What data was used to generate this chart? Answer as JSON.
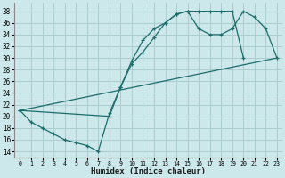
{
  "title": "",
  "xlabel": "Humidex (Indice chaleur)",
  "ylabel": "",
  "bg_color": "#cce8ea",
  "grid_color": "#aacdd0",
  "line_color": "#1e6b6b",
  "xlim": [
    -0.5,
    23.5
  ],
  "ylim": [
    13,
    39.5
  ],
  "xticks": [
    0,
    1,
    2,
    3,
    4,
    5,
    6,
    7,
    8,
    9,
    10,
    11,
    12,
    13,
    14,
    15,
    16,
    17,
    18,
    19,
    20,
    21,
    22,
    23
  ],
  "yticks": [
    14,
    16,
    18,
    20,
    22,
    24,
    26,
    28,
    30,
    32,
    34,
    36,
    38
  ],
  "line1_x": [
    0,
    1,
    2,
    3,
    4,
    5,
    6,
    7,
    8,
    9,
    10,
    11,
    12,
    13,
    14,
    15,
    16,
    17,
    18,
    19,
    20
  ],
  "line1_y": [
    21,
    19,
    18,
    17,
    16,
    15.5,
    15,
    14,
    20.5,
    25,
    29.5,
    33,
    35,
    36,
    37.5,
    38,
    38,
    38,
    38,
    38,
    30
  ],
  "line2_x": [
    0,
    8,
    9,
    10,
    11,
    12,
    13,
    14,
    15,
    16,
    17,
    18,
    19,
    20,
    21,
    22,
    23
  ],
  "line2_y": [
    21,
    20,
    25,
    29,
    31,
    33.5,
    36,
    37.5,
    38,
    35,
    34,
    34,
    35,
    38,
    37,
    35,
    30
  ],
  "line3_x": [
    0,
    23
  ],
  "line3_y": [
    21,
    30
  ]
}
